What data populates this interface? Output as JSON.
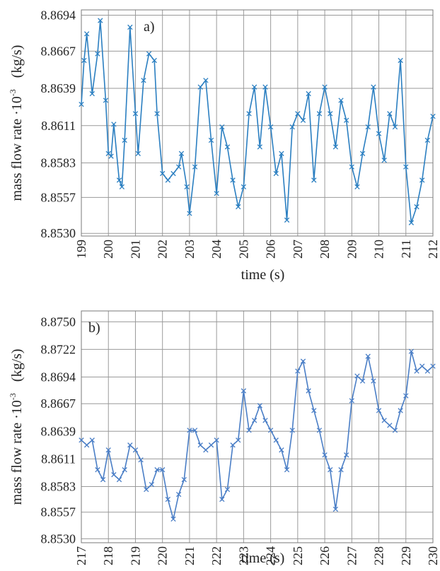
{
  "chart_data": [
    {
      "type": "line",
      "annotation": "a)",
      "xlabel": "time   (s)",
      "ylabel": "mass flow rate ·10",
      "ylabel_exponent": "-3",
      "ylabel_unit": "(kg/s)",
      "grid": true,
      "marker": "x",
      "xlim": [
        199,
        212
      ],
      "xticks": [
        199,
        200,
        201,
        202,
        203,
        204,
        205,
        206,
        207,
        208,
        209,
        210,
        211,
        212
      ],
      "ylim": [
        8.8528,
        8.8698
      ],
      "yticks": [
        {
          "value": 8.853,
          "label": "8.8530"
        },
        8.8557,
        8.8583,
        8.8611,
        8.8639,
        8.8667,
        8.8694
      ],
      "series": [
        {
          "color": "#2b7fc1",
          "x": [
            199.0,
            199.1,
            199.2,
            199.4,
            199.6,
            199.7,
            199.9,
            200.0,
            200.1,
            200.2,
            200.4,
            200.5,
            200.6,
            200.8,
            201.0,
            201.1,
            201.3,
            201.5,
            201.7,
            201.8,
            202.0,
            202.2,
            202.4,
            202.6,
            202.7,
            202.9,
            203.0,
            203.2,
            203.4,
            203.6,
            203.8,
            204.0,
            204.2,
            204.4,
            204.6,
            204.8,
            205.0,
            205.2,
            205.4,
            205.6,
            205.8,
            206.0,
            206.2,
            206.4,
            206.6,
            206.8,
            207.0,
            207.2,
            207.4,
            207.6,
            207.8,
            208.0,
            208.2,
            208.4,
            208.6,
            208.8,
            209.0,
            209.2,
            209.4,
            209.6,
            209.8,
            210.0,
            210.2,
            210.4,
            210.6,
            210.8,
            211.0,
            211.2,
            211.4,
            211.6,
            211.8,
            212.0
          ],
          "values": [
            8.8627,
            8.866,
            8.868,
            8.8635,
            8.8665,
            8.869,
            8.863,
            8.859,
            8.8588,
            8.8612,
            8.857,
            8.8565,
            8.86,
            8.8685,
            8.862,
            8.859,
            8.8645,
            8.8665,
            8.866,
            8.862,
            8.8575,
            8.857,
            8.8575,
            8.858,
            8.859,
            8.8565,
            8.8545,
            8.858,
            8.864,
            8.8645,
            8.86,
            8.856,
            8.861,
            8.8595,
            8.857,
            8.855,
            8.8565,
            8.862,
            8.864,
            8.8595,
            8.864,
            8.861,
            8.8575,
            8.859,
            8.854,
            8.861,
            8.862,
            8.8615,
            8.8635,
            8.857,
            8.862,
            8.864,
            8.862,
            8.8595,
            8.863,
            8.8615,
            8.858,
            8.8565,
            8.859,
            8.861,
            8.864,
            8.8605,
            8.8585,
            8.862,
            8.861,
            8.866,
            8.858,
            8.8538,
            8.855,
            8.857,
            8.86,
            8.8618
          ]
        }
      ]
    },
    {
      "type": "line",
      "annotation": "b)",
      "xlabel": "time   (s)",
      "ylabel": "mass flow rate ·10",
      "ylabel_exponent": "-3",
      "ylabel_unit": "(kg/s)",
      "grid": true,
      "marker": "x",
      "xlim": [
        217,
        230
      ],
      "xticks": [
        217,
        218,
        219,
        220,
        221,
        222,
        223,
        224,
        225,
        226,
        227,
        228,
        229,
        230
      ],
      "ylim": [
        8.8526,
        8.8761
      ],
      "yticks": [
        {
          "value": 8.853,
          "label": "8.8530"
        },
        8.8557,
        8.8583,
        8.8611,
        8.8639,
        8.8667,
        8.8694,
        8.8722,
        {
          "value": 8.875,
          "label": "8.8750"
        }
      ],
      "series": [
        {
          "color": "#4a7ec6",
          "x": [
            217.0,
            217.2,
            217.4,
            217.6,
            217.8,
            218.0,
            218.2,
            218.4,
            218.6,
            218.8,
            219.0,
            219.2,
            219.4,
            219.6,
            219.8,
            220.0,
            220.2,
            220.4,
            220.6,
            220.8,
            221.0,
            221.2,
            221.4,
            221.6,
            221.8,
            222.0,
            222.2,
            222.4,
            222.6,
            222.8,
            223.0,
            223.2,
            223.4,
            223.6,
            223.8,
            224.0,
            224.2,
            224.4,
            224.6,
            224.8,
            225.0,
            225.2,
            225.4,
            225.6,
            225.8,
            226.0,
            226.2,
            226.4,
            226.6,
            226.8,
            227.0,
            227.2,
            227.4,
            227.6,
            227.8,
            228.0,
            228.2,
            228.4,
            228.6,
            228.8,
            229.0,
            229.2,
            229.4,
            229.6,
            229.8,
            230.0
          ],
          "values": [
            8.863,
            8.8625,
            8.863,
            8.86,
            8.859,
            8.862,
            8.8595,
            8.859,
            8.86,
            8.8625,
            8.862,
            8.861,
            8.858,
            8.8585,
            8.86,
            8.86,
            8.857,
            8.855,
            8.8575,
            8.859,
            8.864,
            8.864,
            8.8625,
            8.862,
            8.8625,
            8.863,
            8.857,
            8.858,
            8.8625,
            8.863,
            8.868,
            8.864,
            8.865,
            8.8665,
            8.865,
            8.864,
            8.863,
            8.862,
            8.86,
            8.864,
            8.87,
            8.871,
            8.868,
            8.866,
            8.864,
            8.8615,
            8.86,
            8.856,
            8.86,
            8.8615,
            8.867,
            8.8695,
            8.869,
            8.8715,
            8.869,
            8.866,
            8.865,
            8.8645,
            8.864,
            8.866,
            8.8675,
            8.872,
            8.87,
            8.8705,
            8.87,
            8.8705
          ]
        }
      ]
    }
  ]
}
